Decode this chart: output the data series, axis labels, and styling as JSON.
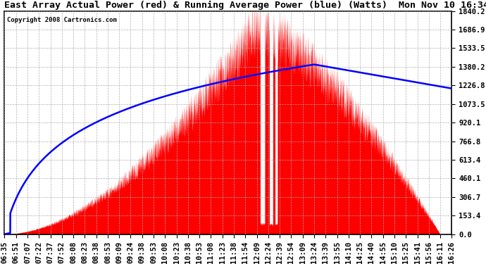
{
  "title": "East Array Actual Power (red) & Running Average Power (blue) (Watts)  Mon Nov 10 16:34",
  "copyright": "Copyright 2008 Cartronics.com",
  "yticks": [
    0.0,
    153.4,
    306.7,
    460.1,
    613.4,
    766.8,
    920.1,
    1073.5,
    1226.8,
    1380.2,
    1533.5,
    1686.9,
    1840.2
  ],
  "ymax": 1840.2,
  "xtick_labels": [
    "06:35",
    "06:51",
    "07:07",
    "07:22",
    "07:37",
    "07:52",
    "08:08",
    "08:23",
    "08:38",
    "08:53",
    "09:09",
    "09:24",
    "09:38",
    "09:53",
    "10:08",
    "10:23",
    "10:38",
    "10:53",
    "11:08",
    "11:23",
    "11:38",
    "11:54",
    "12:09",
    "12:24",
    "12:39",
    "12:54",
    "13:09",
    "13:24",
    "13:39",
    "13:55",
    "14:10",
    "14:25",
    "14:40",
    "14:55",
    "15:10",
    "15:25",
    "15:41",
    "15:56",
    "16:11",
    "16:26"
  ],
  "bg_color": "#ffffff",
  "grid_color": "#aaaaaa",
  "red_color": "#ff0000",
  "blue_color": "#0000ff",
  "title_fontsize": 9.5,
  "tick_fontsize": 7.5
}
